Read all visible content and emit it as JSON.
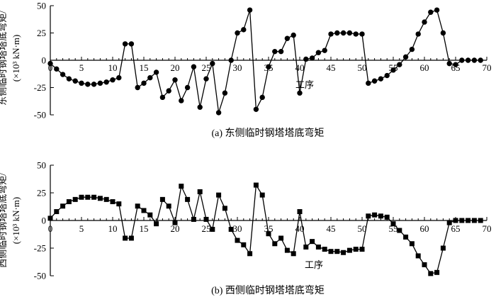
{
  "chart_data": [
    {
      "type": "line",
      "marker": "circle",
      "caption": "(a) 东侧临时钢塔塔底弯矩",
      "xlabel": "工序",
      "ylabel_line1": "东侧临时钢塔塔底弯矩/",
      "ylabel_line2": "(×10³ kN·m)",
      "xlim": [
        0,
        70
      ],
      "ylim": [
        -50,
        50
      ],
      "xticks": [
        "0",
        "5",
        "10",
        "15",
        "20",
        "25",
        "30",
        "35",
        "40",
        "45",
        "50",
        "55",
        "60",
        "65",
        "70"
      ],
      "yticks": [
        "50",
        "25",
        "0",
        "-25",
        "-50"
      ],
      "x": [
        0,
        1,
        2,
        3,
        4,
        5,
        6,
        7,
        8,
        9,
        10,
        11,
        12,
        13,
        14,
        15,
        16,
        17,
        18,
        19,
        20,
        21,
        22,
        23,
        24,
        25,
        26,
        27,
        28,
        29,
        30,
        31,
        32,
        33,
        34,
        35,
        36,
        37,
        38,
        39,
        40,
        41,
        42,
        43,
        44,
        45,
        46,
        47,
        48,
        49,
        50,
        51,
        52,
        53,
        54,
        55,
        56,
        57,
        58,
        59,
        60,
        61,
        62,
        63,
        64,
        65,
        66,
        67,
        68,
        69
      ],
      "y": [
        -3,
        -8,
        -13,
        -17,
        -19,
        -21,
        -22,
        -22,
        -21,
        -20,
        -18,
        -16,
        15,
        15,
        -25,
        -21,
        -16,
        -11,
        -34,
        -28,
        -18,
        -37,
        -25,
        -6,
        -43,
        -17,
        -3,
        -48,
        -30,
        0,
        25,
        28,
        46,
        -45,
        -34,
        -6,
        8,
        8,
        20,
        23,
        -30,
        1,
        2,
        7,
        9,
        24,
        25,
        25,
        25,
        24,
        24,
        -21,
        -19,
        -17,
        -14,
        -9,
        -4,
        3,
        10,
        24,
        35,
        44,
        46,
        25,
        -3,
        -4,
        0,
        0,
        0,
        0
      ]
    },
    {
      "type": "line",
      "marker": "square",
      "caption": "(b) 西侧临时钢塔塔底弯矩",
      "xlabel": "工序",
      "ylabel_line1": "西侧临时钢塔塔底弯矩/",
      "ylabel_line2": "(×10³ kN·m)",
      "xlim": [
        0,
        70
      ],
      "ylim": [
        -50,
        50
      ],
      "xticks": [
        "0",
        "5",
        "10",
        "15",
        "20",
        "25",
        "30",
        "35",
        "40",
        "45",
        "50",
        "55",
        "60",
        "65",
        "70"
      ],
      "yticks": [
        "50",
        "25",
        "0",
        "-25",
        "-50"
      ],
      "x": [
        0,
        1,
        2,
        3,
        4,
        5,
        6,
        7,
        8,
        9,
        10,
        11,
        12,
        13,
        14,
        15,
        16,
        17,
        18,
        19,
        20,
        21,
        22,
        23,
        24,
        25,
        26,
        27,
        28,
        29,
        30,
        31,
        32,
        33,
        34,
        35,
        36,
        37,
        38,
        39,
        40,
        41,
        42,
        43,
        44,
        45,
        46,
        47,
        48,
        49,
        50,
        51,
        52,
        53,
        54,
        55,
        56,
        57,
        58,
        59,
        60,
        61,
        62,
        63,
        64,
        65,
        66,
        67,
        68,
        69
      ],
      "y": [
        2,
        8,
        13,
        17,
        19,
        21,
        21,
        21,
        20,
        19,
        17,
        15,
        -16,
        -16,
        13,
        9,
        5,
        -3,
        19,
        13,
        -2,
        31,
        19,
        1,
        26,
        1,
        -8,
        23,
        11,
        -8,
        -18,
        -22,
        -30,
        32,
        23,
        -12,
        -21,
        -16,
        -27,
        -30,
        8,
        -24,
        -19,
        -24,
        -26,
        -28,
        -28,
        -29,
        -27,
        -26,
        -26,
        4,
        5,
        4,
        3,
        -3,
        -9,
        -15,
        -21,
        -32,
        -40,
        -48,
        -47,
        -25,
        -2,
        0,
        0,
        0,
        0,
        0
      ]
    }
  ]
}
